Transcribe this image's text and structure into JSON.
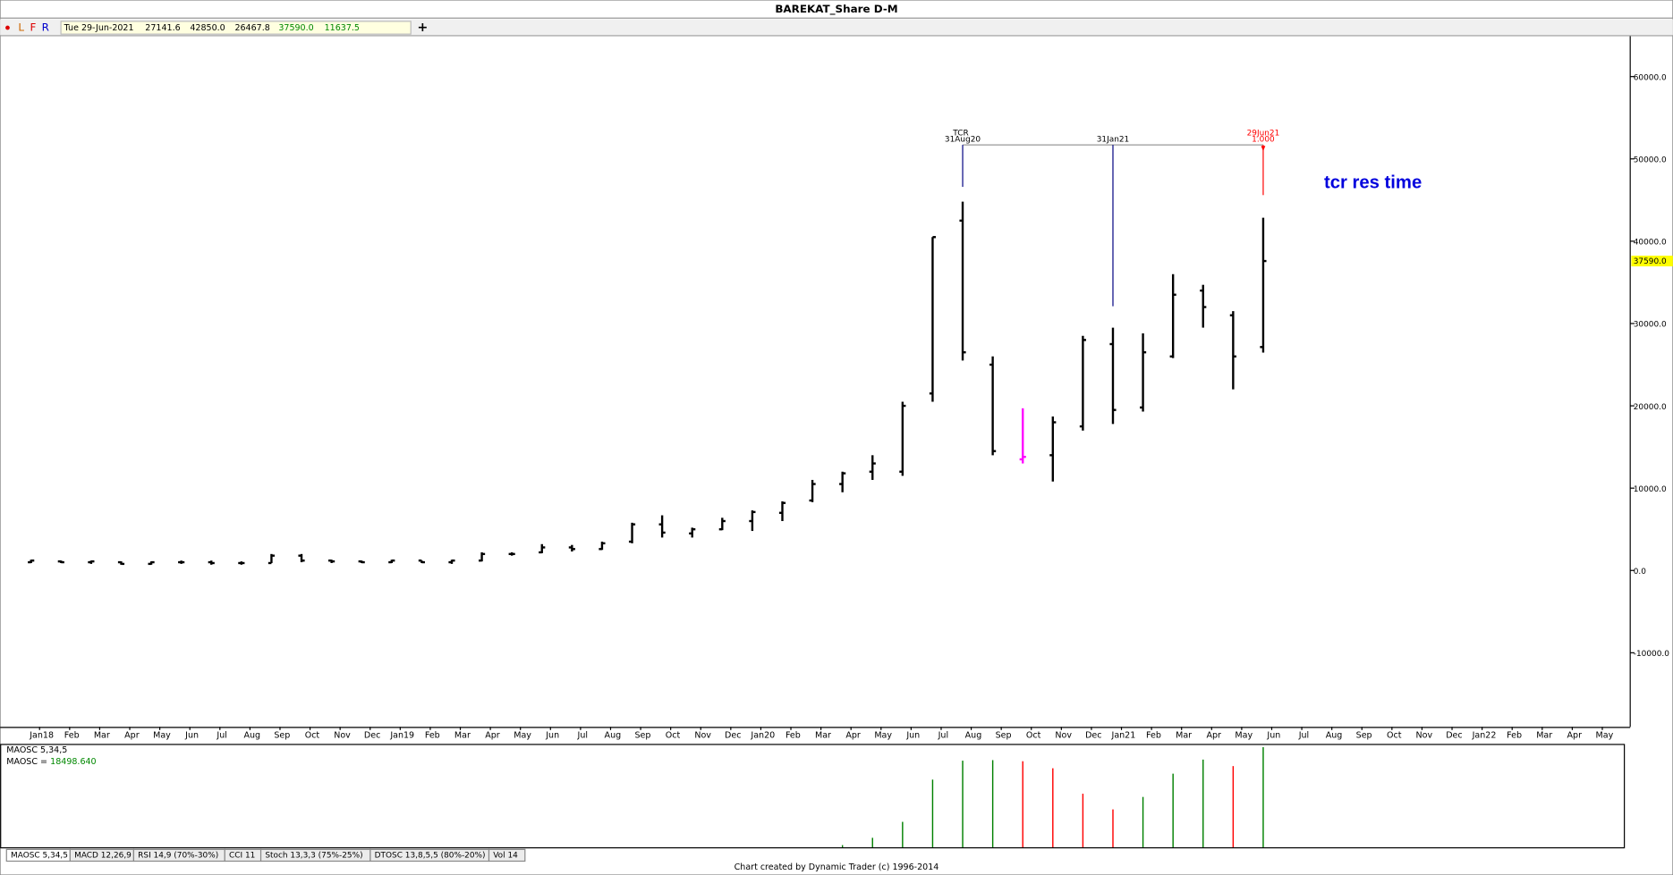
{
  "window_title": "BAREKAT_Share D-M",
  "toolbar": {
    "buttons": [
      "L",
      "F",
      "R"
    ],
    "date": "Tue 29-Jun-2021",
    "values": [
      "27141.6",
      "42850.0",
      "26467.8",
      "37590.0",
      "11637.5"
    ],
    "add": "+"
  },
  "chart_data": {
    "type": "ohlc",
    "categories": [
      "Jan18",
      "Feb",
      "Mar",
      "Apr",
      "May",
      "Jun",
      "Jul",
      "Aug",
      "Sep",
      "Oct",
      "Nov",
      "Dec",
      "Jan19",
      "Feb",
      "Mar",
      "Apr",
      "May",
      "Jun",
      "Jul",
      "Aug",
      "Sep",
      "Oct",
      "Nov",
      "Dec",
      "Jan20",
      "Feb",
      "Mar",
      "Apr",
      "May",
      "Jun",
      "Jul",
      "Aug",
      "Sep",
      "Oct",
      "Nov",
      "Dec",
      "Jan21",
      "Feb",
      "Mar",
      "Apr",
      "May",
      "Jun",
      "Jul",
      "Aug",
      "Sep",
      "Oct",
      "Nov",
      "Dec",
      "Jan22",
      "Feb",
      "Mar",
      "Apr",
      "May"
    ],
    "open": [
      1000,
      1100,
      1000,
      1000,
      800,
      1000,
      1000,
      900,
      900,
      1800,
      1200,
      1100,
      1000,
      1200,
      1000,
      1200,
      2000,
      2200,
      2800,
      2600,
      3500,
      5600,
      4500,
      5000,
      6000,
      7000,
      8500,
      10500,
      12000,
      12000,
      21500,
      42500,
      25000,
      13500,
      14000,
      17500,
      27500,
      19800,
      26000,
      34000,
      31000,
      27141.6,
      null,
      null,
      null,
      null,
      null,
      null,
      null,
      null,
      null,
      null,
      null
    ],
    "high": [
      1300,
      1200,
      1200,
      1100,
      1100,
      1200,
      1200,
      1100,
      2000,
      2000,
      1300,
      1200,
      1300,
      1200,
      1300,
      2200,
      2200,
      3200,
      3100,
      3500,
      5800,
      6700,
      5200,
      6400,
      7300,
      8400,
      11000,
      12000,
      14000,
      20500,
      40500,
      44800,
      26000,
      19700,
      18700,
      28500,
      29500,
      28800,
      36000,
      34700,
      31500,
      42850,
      null,
      null,
      null,
      null,
      null,
      null,
      null,
      null,
      null,
      null,
      null
    ],
    "low": [
      900,
      900,
      800,
      700,
      700,
      800,
      700,
      700,
      900,
      1000,
      900,
      900,
      900,
      900,
      800,
      1100,
      1800,
      2100,
      2300,
      2500,
      3300,
      4000,
      4000,
      4900,
      4800,
      6000,
      8300,
      9500,
      11000,
      11500,
      20500,
      25500,
      14000,
      13000,
      10800,
      17000,
      17800,
      19300,
      25800,
      29500,
      22000,
      26467.8,
      null,
      null,
      null,
      null,
      null,
      null,
      null,
      null,
      null,
      null,
      null
    ],
    "close": [
      1200,
      1000,
      1100,
      800,
      1000,
      1000,
      900,
      900,
      1800,
      1200,
      1100,
      1000,
      1200,
      1000,
      1200,
      2000,
      2000,
      2800,
      2600,
      3300,
      5600,
      4600,
      5000,
      6000,
      7100,
      8200,
      10500,
      11800,
      13000,
      20000,
      40500,
      26500,
      14500,
      13800,
      18000,
      28000,
      19500,
      26500,
      33500,
      32000,
      26000,
      37590,
      null,
      null,
      null,
      null,
      null,
      null,
      null,
      null,
      null,
      null,
      null
    ],
    "color": "#000000",
    "highlight_index": 33,
    "highlight_color": "#ff00ff",
    "ylim": [
      -19000,
      64900
    ],
    "yticks": [
      {
        "value": -10000,
        "label": "-10000.0"
      },
      {
        "value": 0,
        "label": "0.0"
      },
      {
        "value": 10000,
        "label": "10000.0"
      },
      {
        "value": 20000,
        "label": "20000.0"
      },
      {
        "value": 30000,
        "label": "30000.0"
      },
      {
        "value": 40000,
        "label": "40000.0"
      },
      {
        "value": 50000,
        "label": "50000.0"
      },
      {
        "value": 60000,
        "label": "60000.0"
      }
    ],
    "last_price": {
      "value": 37590,
      "label": "37590.0"
    },
    "tcr": {
      "title": "TCR",
      "level": 51700,
      "line_color": "#999999",
      "markers": [
        {
          "text": "31Aug20",
          "bottom": 46600,
          "color": "#000080"
        },
        {
          "text": "31Jan21",
          "bottom": 32100,
          "color": "#000080"
        },
        {
          "text": "29Jun21",
          "extra": "1.000",
          "bottom": 45600,
          "color": "#ff0000"
        }
      ]
    },
    "annotation": {
      "text": "tcr res time",
      "color": "#0000dd"
    },
    "indicator": {
      "type": "histogram",
      "title": "MAOSC 5,34,5",
      "readout_name": "MAOSC =",
      "readout": "18498.640",
      "up_color": "#008000",
      "down_color": "#ff0000",
      "ylim": [
        0,
        18900
      ],
      "values": [
        null,
        null,
        null,
        null,
        null,
        null,
        null,
        null,
        null,
        null,
        null,
        null,
        null,
        null,
        null,
        null,
        null,
        null,
        null,
        null,
        null,
        null,
        null,
        null,
        null,
        null,
        null,
        400,
        1750,
        4700,
        12500,
        16000,
        16100,
        15900,
        14600,
        9900,
        7000,
        9300,
        13600,
        16200,
        15000,
        18498.64,
        null,
        null,
        null,
        null,
        null,
        null,
        null,
        null,
        null,
        null,
        null
      ]
    }
  },
  "tabs": [
    "MAOSC 5,34,5",
    "MACD 12,26,9",
    "RSI 14,9 (70%-30%)",
    "CCI 11",
    "Stoch 13,3,3 (75%-25%)",
    "DTOSC 13,8,5,5 (80%-20%)",
    "Vol 14"
  ],
  "footer": "Chart created by Dynamic Trader  (c) 1996-2014"
}
